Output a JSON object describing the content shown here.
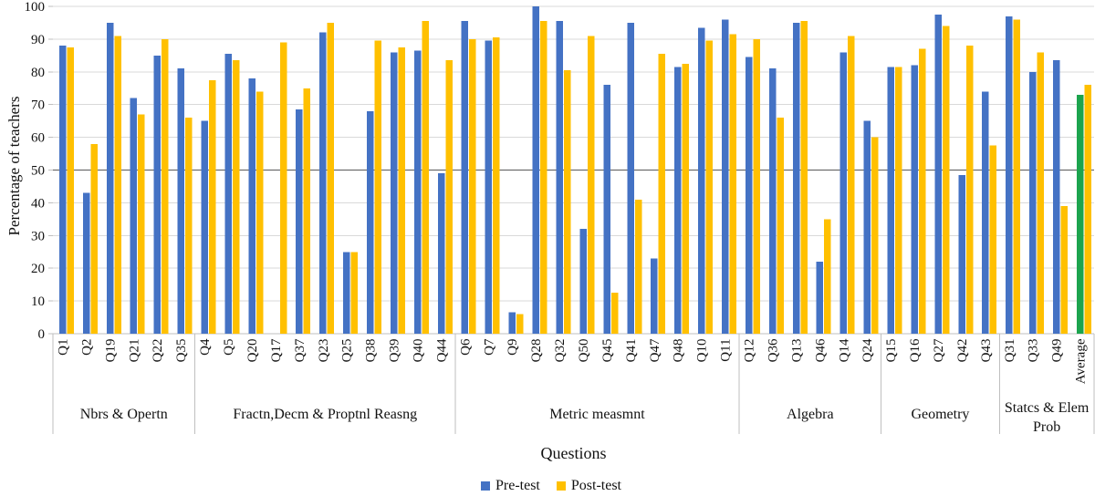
{
  "chart_data": {
    "type": "bar",
    "title": "",
    "ylabel": "Percentage of teachers",
    "xlabel": "Questions",
    "ylim": [
      0,
      100
    ],
    "yticks": [
      0,
      10,
      20,
      30,
      40,
      50,
      60,
      70,
      80,
      90,
      100
    ],
    "reference_line": 50,
    "grid": true,
    "legend_position": "bottom",
    "legend": [
      {
        "label": "Pre-test",
        "color": "#4472C4"
      },
      {
        "label": "Post-test",
        "color": "#FFC000"
      }
    ],
    "colors": {
      "pre": "#4472C4",
      "post": "#FFC000",
      "average_pre": "#1CA44E",
      "grid": "#D9D9D9",
      "axis": "#BFBFBF",
      "ref_line": "#595959",
      "text": "#111111"
    },
    "groups": [
      {
        "label": "Nbrs & Opertn",
        "label_lines": [
          "Nbrs & Opertn"
        ],
        "items": [
          {
            "q": "Q1",
            "pre": 88,
            "post": 87.5
          },
          {
            "q": "Q2",
            "pre": 43,
            "post": 58
          },
          {
            "q": "Q19",
            "pre": 95,
            "post": 91
          },
          {
            "q": "Q21",
            "pre": 72,
            "post": 67
          },
          {
            "q": "Q22",
            "pre": 85,
            "post": 90
          },
          {
            "q": "Q35",
            "pre": 81,
            "post": 66
          }
        ]
      },
      {
        "label": "Fractn,Decm & Proptnl Reasng",
        "label_lines": [
          "Fractn,Decm & Proptnl Reasng"
        ],
        "items": [
          {
            "q": "Q4",
            "pre": 65,
            "post": 77.5
          },
          {
            "q": "Q5",
            "pre": 85.5,
            "post": 83.5
          },
          {
            "q": "Q20",
            "pre": 78,
            "post": 74
          },
          {
            "q": "Q17",
            "pre": 0,
            "post": 89
          },
          {
            "q": "Q37",
            "pre": 68.5,
            "post": 75
          },
          {
            "q": "Q23",
            "pre": 92,
            "post": 95
          },
          {
            "q": "Q25",
            "pre": 25,
            "post": 25
          },
          {
            "q": "Q38",
            "pre": 68,
            "post": 89.5
          },
          {
            "q": "Q39",
            "pre": 86,
            "post": 87.5
          },
          {
            "q": "Q40",
            "pre": 86.5,
            "post": 95.5
          },
          {
            "q": "Q44",
            "pre": 49,
            "post": 83.5
          }
        ]
      },
      {
        "label": "Metric measmnt",
        "label_lines": [
          "Metric measmnt"
        ],
        "items": [
          {
            "q": "Q6",
            "pre": 95.5,
            "post": 90
          },
          {
            "q": "Q7",
            "pre": 89.5,
            "post": 90.5
          },
          {
            "q": "Q9",
            "pre": 6.5,
            "post": 6
          },
          {
            "q": "Q28",
            "pre": 100,
            "post": 95.5
          },
          {
            "q": "Q32",
            "pre": 95.5,
            "post": 80.5
          },
          {
            "q": "Q50",
            "pre": 32,
            "post": 91
          },
          {
            "q": "Q45",
            "pre": 76,
            "post": 12.5
          },
          {
            "q": "Q41",
            "pre": 95,
            "post": 41
          },
          {
            "q": "Q47",
            "pre": 23,
            "post": 85.5
          },
          {
            "q": "Q48",
            "pre": 81.5,
            "post": 82.5
          },
          {
            "q": "Q10",
            "pre": 93.5,
            "post": 89.5
          },
          {
            "q": "Q11",
            "pre": 96,
            "post": 91.5
          }
        ]
      },
      {
        "label": "Algebra",
        "label_lines": [
          "Algebra"
        ],
        "items": [
          {
            "q": "Q12",
            "pre": 84.5,
            "post": 90
          },
          {
            "q": "Q36",
            "pre": 81,
            "post": 66
          },
          {
            "q": "Q13",
            "pre": 95,
            "post": 95.5
          },
          {
            "q": "Q46",
            "pre": 22,
            "post": 35
          },
          {
            "q": "Q14",
            "pre": 86,
            "post": 91
          },
          {
            "q": "Q24",
            "pre": 65,
            "post": 60
          }
        ]
      },
      {
        "label": "Geometry",
        "label_lines": [
          "Geometry"
        ],
        "items": [
          {
            "q": "Q15",
            "pre": 81.5,
            "post": 81.5
          },
          {
            "q": "Q16",
            "pre": 82,
            "post": 87
          },
          {
            "q": "Q27",
            "pre": 97.5,
            "post": 94
          },
          {
            "q": "Q42",
            "pre": 48.5,
            "post": 88
          },
          {
            "q": "Q43",
            "pre": 74,
            "post": 57.5
          }
        ]
      },
      {
        "label": "Statcs & Elem Prob",
        "label_lines": [
          "Statcs & Elem",
          "Prob"
        ],
        "items": [
          {
            "q": "Q31",
            "pre": 97,
            "post": 96
          },
          {
            "q": "Q33",
            "pre": 80,
            "post": 86
          },
          {
            "q": "Q49",
            "pre": 83.5,
            "post": 39
          },
          {
            "q": "Average",
            "pre": 73,
            "post": 76,
            "highlight": true
          }
        ]
      }
    ]
  }
}
